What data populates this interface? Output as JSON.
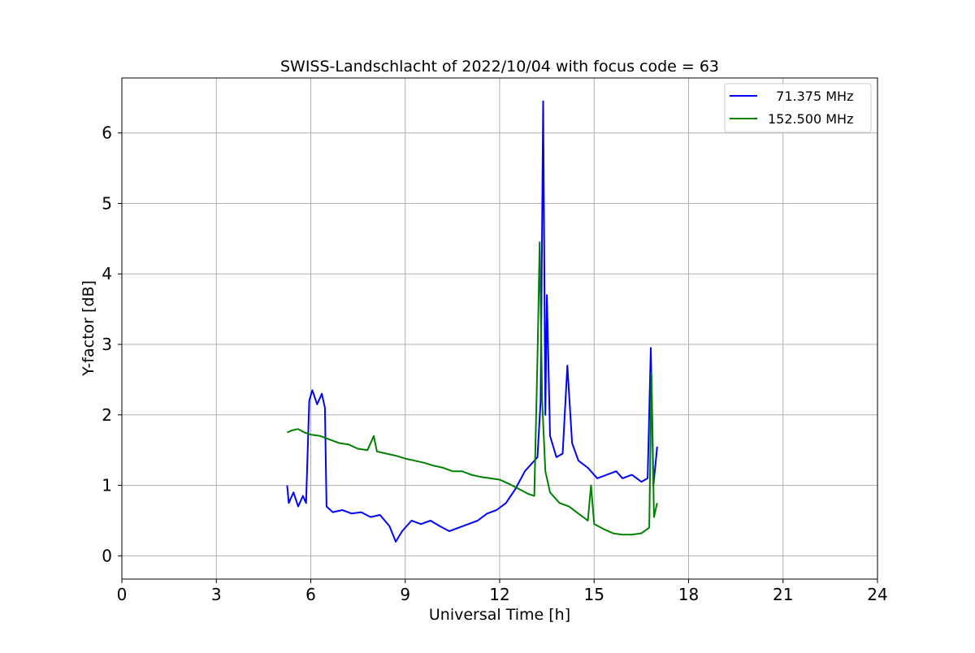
{
  "chart_data": {
    "type": "line",
    "title": "SWISS-Landschlacht of 2022/10/04 with focus code = 63",
    "xlabel": "Universal Time [h]",
    "ylabel": "Y-factor [dB]",
    "xlim": [
      0,
      24
    ],
    "ylim": [
      -0.33,
      6.78
    ],
    "xticks": [
      0,
      3,
      6,
      9,
      12,
      15,
      18,
      21,
      24
    ],
    "yticks": [
      0,
      1,
      2,
      3,
      4,
      5,
      6
    ],
    "grid": true,
    "legend_position": "top-right",
    "series": [
      {
        "name": "  71.375 MHz",
        "color": "#0000ff",
        "points": [
          [
            5.25,
            1.0
          ],
          [
            5.3,
            0.75
          ],
          [
            5.45,
            0.9
          ],
          [
            5.6,
            0.7
          ],
          [
            5.75,
            0.85
          ],
          [
            5.85,
            0.75
          ],
          [
            5.95,
            2.2
          ],
          [
            6.05,
            2.35
          ],
          [
            6.2,
            2.15
          ],
          [
            6.35,
            2.3
          ],
          [
            6.45,
            2.1
          ],
          [
            6.5,
            0.7
          ],
          [
            6.7,
            0.62
          ],
          [
            7.0,
            0.65
          ],
          [
            7.3,
            0.6
          ],
          [
            7.6,
            0.62
          ],
          [
            7.9,
            0.55
          ],
          [
            8.2,
            0.58
          ],
          [
            8.5,
            0.42
          ],
          [
            8.7,
            0.2
          ],
          [
            8.9,
            0.35
          ],
          [
            9.2,
            0.5
          ],
          [
            9.5,
            0.45
          ],
          [
            9.8,
            0.5
          ],
          [
            10.1,
            0.42
          ],
          [
            10.4,
            0.35
          ],
          [
            10.7,
            0.4
          ],
          [
            11.0,
            0.45
          ],
          [
            11.3,
            0.5
          ],
          [
            11.6,
            0.6
          ],
          [
            11.9,
            0.65
          ],
          [
            12.2,
            0.75
          ],
          [
            12.5,
            0.95
          ],
          [
            12.8,
            1.2
          ],
          [
            13.0,
            1.3
          ],
          [
            13.2,
            1.4
          ],
          [
            13.3,
            2.2
          ],
          [
            13.38,
            6.45
          ],
          [
            13.45,
            2.0
          ],
          [
            13.5,
            3.7
          ],
          [
            13.6,
            1.7
          ],
          [
            13.8,
            1.4
          ],
          [
            14.0,
            1.45
          ],
          [
            14.15,
            2.7
          ],
          [
            14.3,
            1.6
          ],
          [
            14.5,
            1.35
          ],
          [
            14.8,
            1.25
          ],
          [
            15.1,
            1.1
          ],
          [
            15.4,
            1.15
          ],
          [
            15.7,
            1.2
          ],
          [
            15.9,
            1.1
          ],
          [
            16.2,
            1.15
          ],
          [
            16.5,
            1.05
          ],
          [
            16.7,
            1.1
          ],
          [
            16.8,
            2.95
          ],
          [
            16.88,
            1.0
          ],
          [
            16.95,
            1.3
          ],
          [
            17.0,
            1.55
          ]
        ]
      },
      {
        "name": "152.500 MHz",
        "color": "#008000",
        "points": [
          [
            5.25,
            1.75
          ],
          [
            5.4,
            1.78
          ],
          [
            5.6,
            1.8
          ],
          [
            5.8,
            1.75
          ],
          [
            6.0,
            1.72
          ],
          [
            6.3,
            1.7
          ],
          [
            6.6,
            1.65
          ],
          [
            6.9,
            1.6
          ],
          [
            7.2,
            1.58
          ],
          [
            7.5,
            1.52
          ],
          [
            7.8,
            1.5
          ],
          [
            8.0,
            1.7
          ],
          [
            8.1,
            1.48
          ],
          [
            8.4,
            1.45
          ],
          [
            8.7,
            1.42
          ],
          [
            9.0,
            1.38
          ],
          [
            9.3,
            1.35
          ],
          [
            9.6,
            1.32
          ],
          [
            9.9,
            1.28
          ],
          [
            10.2,
            1.25
          ],
          [
            10.5,
            1.2
          ],
          [
            10.8,
            1.2
          ],
          [
            11.1,
            1.15
          ],
          [
            11.4,
            1.12
          ],
          [
            11.7,
            1.1
          ],
          [
            12.0,
            1.08
          ],
          [
            12.3,
            1.02
          ],
          [
            12.6,
            0.95
          ],
          [
            12.9,
            0.88
          ],
          [
            13.1,
            0.85
          ],
          [
            13.2,
            2.8
          ],
          [
            13.27,
            4.45
          ],
          [
            13.35,
            2.2
          ],
          [
            13.45,
            1.2
          ],
          [
            13.6,
            0.9
          ],
          [
            13.9,
            0.75
          ],
          [
            14.2,
            0.7
          ],
          [
            14.5,
            0.6
          ],
          [
            14.8,
            0.5
          ],
          [
            14.9,
            1.0
          ],
          [
            15.0,
            0.45
          ],
          [
            15.3,
            0.38
          ],
          [
            15.6,
            0.32
          ],
          [
            15.9,
            0.3
          ],
          [
            16.2,
            0.3
          ],
          [
            16.5,
            0.32
          ],
          [
            16.75,
            0.4
          ],
          [
            16.82,
            2.6
          ],
          [
            16.9,
            0.55
          ],
          [
            17.0,
            0.75
          ]
        ]
      }
    ]
  }
}
